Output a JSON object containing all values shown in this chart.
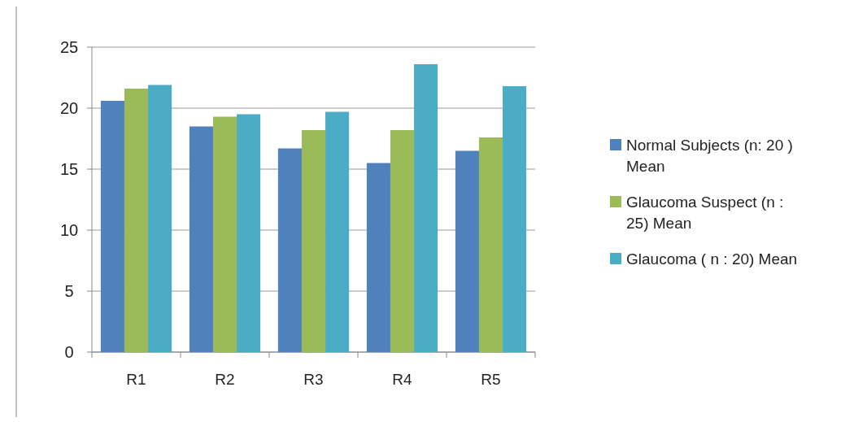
{
  "chart_data": {
    "type": "bar",
    "categories": [
      "R1",
      "R2",
      "R3",
      "R4",
      "R5"
    ],
    "series": [
      {
        "name": "Normal Subjects (n: 20 ) Mean",
        "color": "#4f81bd",
        "values": [
          20.6,
          18.5,
          16.7,
          15.5,
          16.5
        ]
      },
      {
        "name": "Glaucoma Suspect (n : 25) Mean",
        "color": "#9bbb59",
        "values": [
          21.6,
          19.3,
          18.2,
          18.2,
          17.6
        ]
      },
      {
        "name": "Glaucoma ( n : 20) Mean",
        "color": "#4bacc6",
        "values": [
          21.9,
          19.5,
          19.7,
          23.6,
          21.8
        ]
      }
    ],
    "ylim": [
      0,
      25
    ],
    "yticks": [
      0,
      5,
      10,
      15,
      20,
      25
    ],
    "grid": "y",
    "legend": "right"
  }
}
